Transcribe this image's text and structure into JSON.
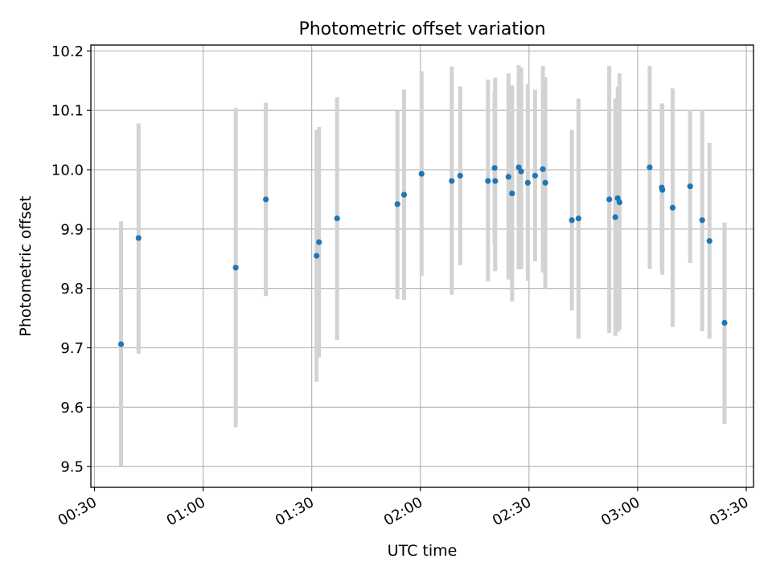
{
  "chart_data": {
    "type": "scatter",
    "title": "Photometric offset variation",
    "xlabel": "UTC time",
    "ylabel": "Photometric offset",
    "x_ticks": [
      "00:30",
      "01:00",
      "01:30",
      "02:00",
      "02:30",
      "03:00",
      "03:30"
    ],
    "y_ticks": [
      "9.5",
      "9.6",
      "9.7",
      "9.8",
      "9.9",
      "10.0",
      "10.1",
      "10.2"
    ],
    "xlim": [
      "00:29",
      "03:32"
    ],
    "ylim": [
      9.465,
      10.21
    ],
    "grid": true,
    "point_color": "#1f77b4",
    "errorbar_color": "#d3d3d3",
    "points": [
      {
        "t": "00:37:20",
        "y": 9.706,
        "lo": 9.5,
        "hi": 9.913
      },
      {
        "t": "00:42:10",
        "y": 9.885,
        "lo": 9.69,
        "hi": 10.078
      },
      {
        "t": "01:09:00",
        "y": 9.835,
        "lo": 9.566,
        "hi": 10.104
      },
      {
        "t": "01:17:20",
        "y": 9.95,
        "lo": 9.787,
        "hi": 10.113
      },
      {
        "t": "01:31:20",
        "y": 9.855,
        "lo": 9.643,
        "hi": 10.067
      },
      {
        "t": "01:32:00",
        "y": 9.878,
        "lo": 9.684,
        "hi": 10.072
      },
      {
        "t": "01:37:00",
        "y": 9.918,
        "lo": 9.713,
        "hi": 10.122
      },
      {
        "t": "01:53:40",
        "y": 9.942,
        "lo": 9.782,
        "hi": 10.099
      },
      {
        "t": "01:55:30",
        "y": 9.958,
        "lo": 9.781,
        "hi": 10.135
      },
      {
        "t": "02:00:20",
        "y": 9.993,
        "lo": 9.821,
        "hi": 10.166
      },
      {
        "t": "02:08:40",
        "y": 9.981,
        "lo": 9.789,
        "hi": 10.174
      },
      {
        "t": "02:11:00",
        "y": 9.99,
        "lo": 9.839,
        "hi": 10.14
      },
      {
        "t": "02:18:40",
        "y": 9.981,
        "lo": 9.812,
        "hi": 10.152
      },
      {
        "t": "02:20:30",
        "y": 10.003,
        "lo": 9.873,
        "hi": 10.133
      },
      {
        "t": "02:20:40",
        "y": 9.981,
        "lo": 9.829,
        "hi": 10.155
      },
      {
        "t": "02:24:20",
        "y": 9.988,
        "lo": 9.815,
        "hi": 10.162
      },
      {
        "t": "02:25:20",
        "y": 9.96,
        "lo": 9.778,
        "hi": 10.142
      },
      {
        "t": "02:27:10",
        "y": 10.004,
        "lo": 9.832,
        "hi": 10.176
      },
      {
        "t": "02:27:50",
        "y": 9.997,
        "lo": 9.832,
        "hi": 10.172
      },
      {
        "t": "02:29:40",
        "y": 9.978,
        "lo": 9.813,
        "hi": 10.144
      },
      {
        "t": "02:31:40",
        "y": 9.99,
        "lo": 9.846,
        "hi": 10.135
      },
      {
        "t": "02:33:50",
        "y": 10.001,
        "lo": 9.827,
        "hi": 10.175
      },
      {
        "t": "02:34:30",
        "y": 9.978,
        "lo": 9.8,
        "hi": 10.156
      },
      {
        "t": "02:41:50",
        "y": 9.915,
        "lo": 9.763,
        "hi": 10.067
      },
      {
        "t": "02:43:40",
        "y": 9.918,
        "lo": 9.715,
        "hi": 10.12
      },
      {
        "t": "02:52:10",
        "y": 9.95,
        "lo": 9.725,
        "hi": 10.175
      },
      {
        "t": "02:53:50",
        "y": 9.92,
        "lo": 9.72,
        "hi": 10.12
      },
      {
        "t": "02:54:30",
        "y": 9.952,
        "lo": 9.727,
        "hi": 10.14
      },
      {
        "t": "02:55:00",
        "y": 9.945,
        "lo": 9.73,
        "hi": 10.162
      },
      {
        "t": "03:03:20",
        "y": 10.004,
        "lo": 9.833,
        "hi": 10.175
      },
      {
        "t": "03:06:40",
        "y": 9.97,
        "lo": 9.83,
        "hi": 10.112
      },
      {
        "t": "03:06:50",
        "y": 9.966,
        "lo": 9.823,
        "hi": 10.109
      },
      {
        "t": "03:09:40",
        "y": 9.936,
        "lo": 9.735,
        "hi": 10.137
      },
      {
        "t": "03:14:30",
        "y": 9.972,
        "lo": 9.843,
        "hi": 10.101
      },
      {
        "t": "03:17:50",
        "y": 9.915,
        "lo": 9.728,
        "hi": 10.1
      },
      {
        "t": "03:19:50",
        "y": 9.88,
        "lo": 9.715,
        "hi": 10.045
      },
      {
        "t": "03:24:00",
        "y": 9.742,
        "lo": 9.572,
        "hi": 9.911
      }
    ]
  }
}
